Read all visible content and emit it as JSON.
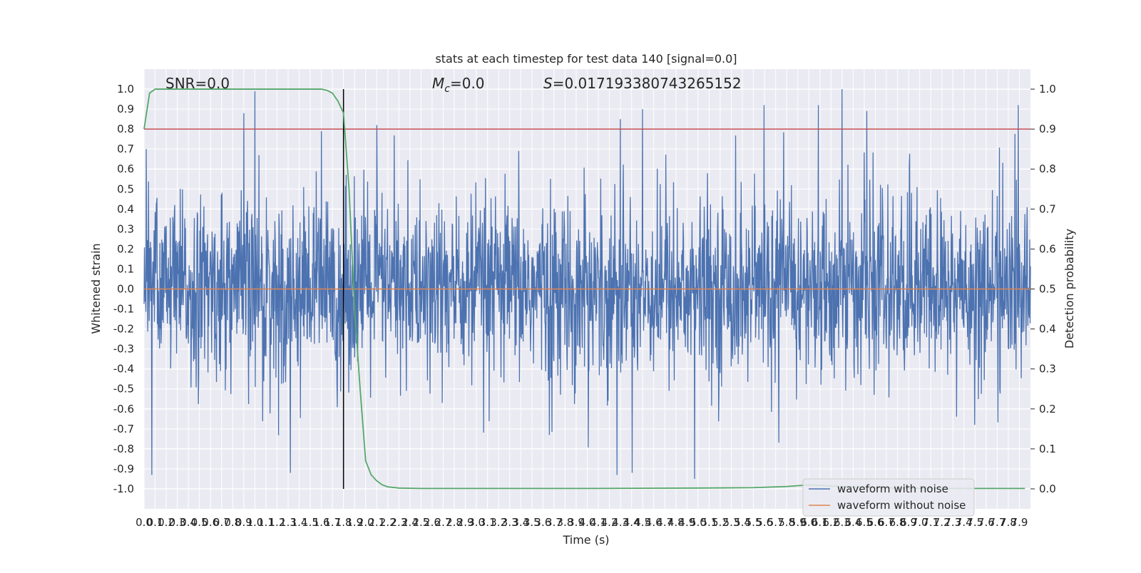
{
  "chart_data": {
    "type": "line",
    "title": "stats at each timestep for test data 140 [signal=0.0]",
    "xlabel": "Time (s)",
    "ylabel": "Whitened strain",
    "ylabel_right": "Detection probability",
    "xlim": [
      0.0,
      8.0
    ],
    "ylim": [
      -1.1,
      1.1
    ],
    "ylim_right": [
      -0.05,
      1.05
    ],
    "x_ticks": [
      "0.0",
      "0.1",
      "0.2",
      "0.3",
      "0.4",
      "0.5",
      "0.6",
      "0.7",
      "0.8",
      "0.9",
      "1.0",
      "1.1",
      "1.2",
      "1.3",
      "1.4",
      "1.5",
      "1.6",
      "1.7",
      "1.8",
      "1.9",
      "2.0",
      "2.1",
      "2.2",
      "2.3",
      "2.4",
      "2.5",
      "2.6",
      "2.7",
      "2.8",
      "2.9",
      "3.0",
      "3.1",
      "3.2",
      "3.3",
      "3.4",
      "3.5",
      "3.6",
      "3.7",
      "3.8",
      "3.9",
      "4.0",
      "4.1",
      "4.2",
      "4.3",
      "4.4",
      "4.5",
      "4.6",
      "4.7",
      "4.8",
      "4.9",
      "5.0",
      "5.1",
      "5.2",
      "5.3",
      "5.4",
      "5.5",
      "5.6",
      "5.7",
      "5.8",
      "5.9",
      "6.0",
      "6.1",
      "6.2",
      "6.3",
      "6.4",
      "6.5",
      "6.6",
      "6.7",
      "6.8",
      "6.9",
      "7.0",
      "7.1",
      "7.2",
      "7.3",
      "7.4",
      "7.5",
      "7.6",
      "7.7",
      "7.8",
      "7.9"
    ],
    "y_ticks": [
      "1.0",
      "0.9",
      "0.8",
      "0.7",
      "0.6",
      "0.5",
      "0.4",
      "0.3",
      "0.2",
      "0.1",
      "0.0",
      "-0.1",
      "-0.2",
      "-0.3",
      "-0.4",
      "-0.5",
      "-0.6",
      "-0.7",
      "-0.8",
      "-0.9",
      "-1.0"
    ],
    "y_ticks_right": [
      "1.0",
      "0.9",
      "0.8",
      "0.7",
      "0.6",
      "0.5",
      "0.4",
      "0.3",
      "0.2",
      "0.1",
      "0.0"
    ],
    "annotations": {
      "snr": "SNR=0.0",
      "mc_symbol": "M",
      "mc_sub": "c",
      "mc_value": "=0.0",
      "s_symbol": "S",
      "s_value": "=0.017193380743265152"
    },
    "grid": true,
    "legend_position": "lower right",
    "series": [
      {
        "name": "waveform with noise",
        "color": "#4c72b0",
        "axis": "left",
        "style": "noise ±0.2 typical, spikes up to 1.0 / down to -0.95",
        "peaks_x": [
          0.02,
          0.07,
          0.9,
          1.0,
          1.6,
          2.1,
          4.3,
          4.5,
          6.3,
          4.97,
          4.27
        ],
        "peaks_y": [
          0.7,
          -0.93,
          0.88,
          0.99,
          0.79,
          0.82,
          0.85,
          0.9,
          1.0,
          -0.95,
          -0.93
        ]
      },
      {
        "name": "waveform without noise",
        "color": "#dd8452",
        "axis": "left",
        "x": [
          0.0,
          8.0
        ],
        "y": [
          0.0,
          0.0
        ]
      },
      {
        "name": "detection probability",
        "color": "#55a868",
        "axis": "right",
        "x": [
          0.0,
          0.05,
          0.1,
          0.2,
          0.5,
          1.0,
          1.5,
          1.6,
          1.65,
          1.7,
          1.75,
          1.8,
          1.85,
          1.9,
          1.95,
          2.0,
          2.05,
          2.1,
          2.15,
          2.2,
          2.3,
          2.5,
          3.0,
          4.0,
          5.0,
          5.5,
          5.8,
          6.0,
          6.3,
          6.6,
          7.0,
          7.5,
          7.95
        ],
        "y": [
          0.9,
          0.99,
          1.0,
          1.0,
          1.0,
          1.0,
          1.0,
          1.0,
          0.997,
          0.99,
          0.97,
          0.94,
          0.75,
          0.45,
          0.25,
          0.07,
          0.035,
          0.02,
          0.01,
          0.005,
          0.002,
          0.001,
          0.001,
          0.001,
          0.002,
          0.003,
          0.006,
          0.01,
          0.006,
          0.003,
          0.001,
          0.001,
          0.001
        ]
      }
    ],
    "reference_lines": {
      "threshold_y_right": 0.9,
      "threshold_color": "#c44e52",
      "vertical_x": 1.8,
      "vertical_color": "#000000"
    },
    "legend": [
      {
        "label": "waveform with noise",
        "color": "#4c72b0"
      },
      {
        "label": "waveform without noise",
        "color": "#dd8452"
      }
    ]
  },
  "colors": {
    "plot_background": "#eaeaf2",
    "grid": "#ffffff",
    "noise": "#4c72b0",
    "clean": "#dd8452",
    "probability": "#55a868",
    "threshold": "#c44e52"
  }
}
